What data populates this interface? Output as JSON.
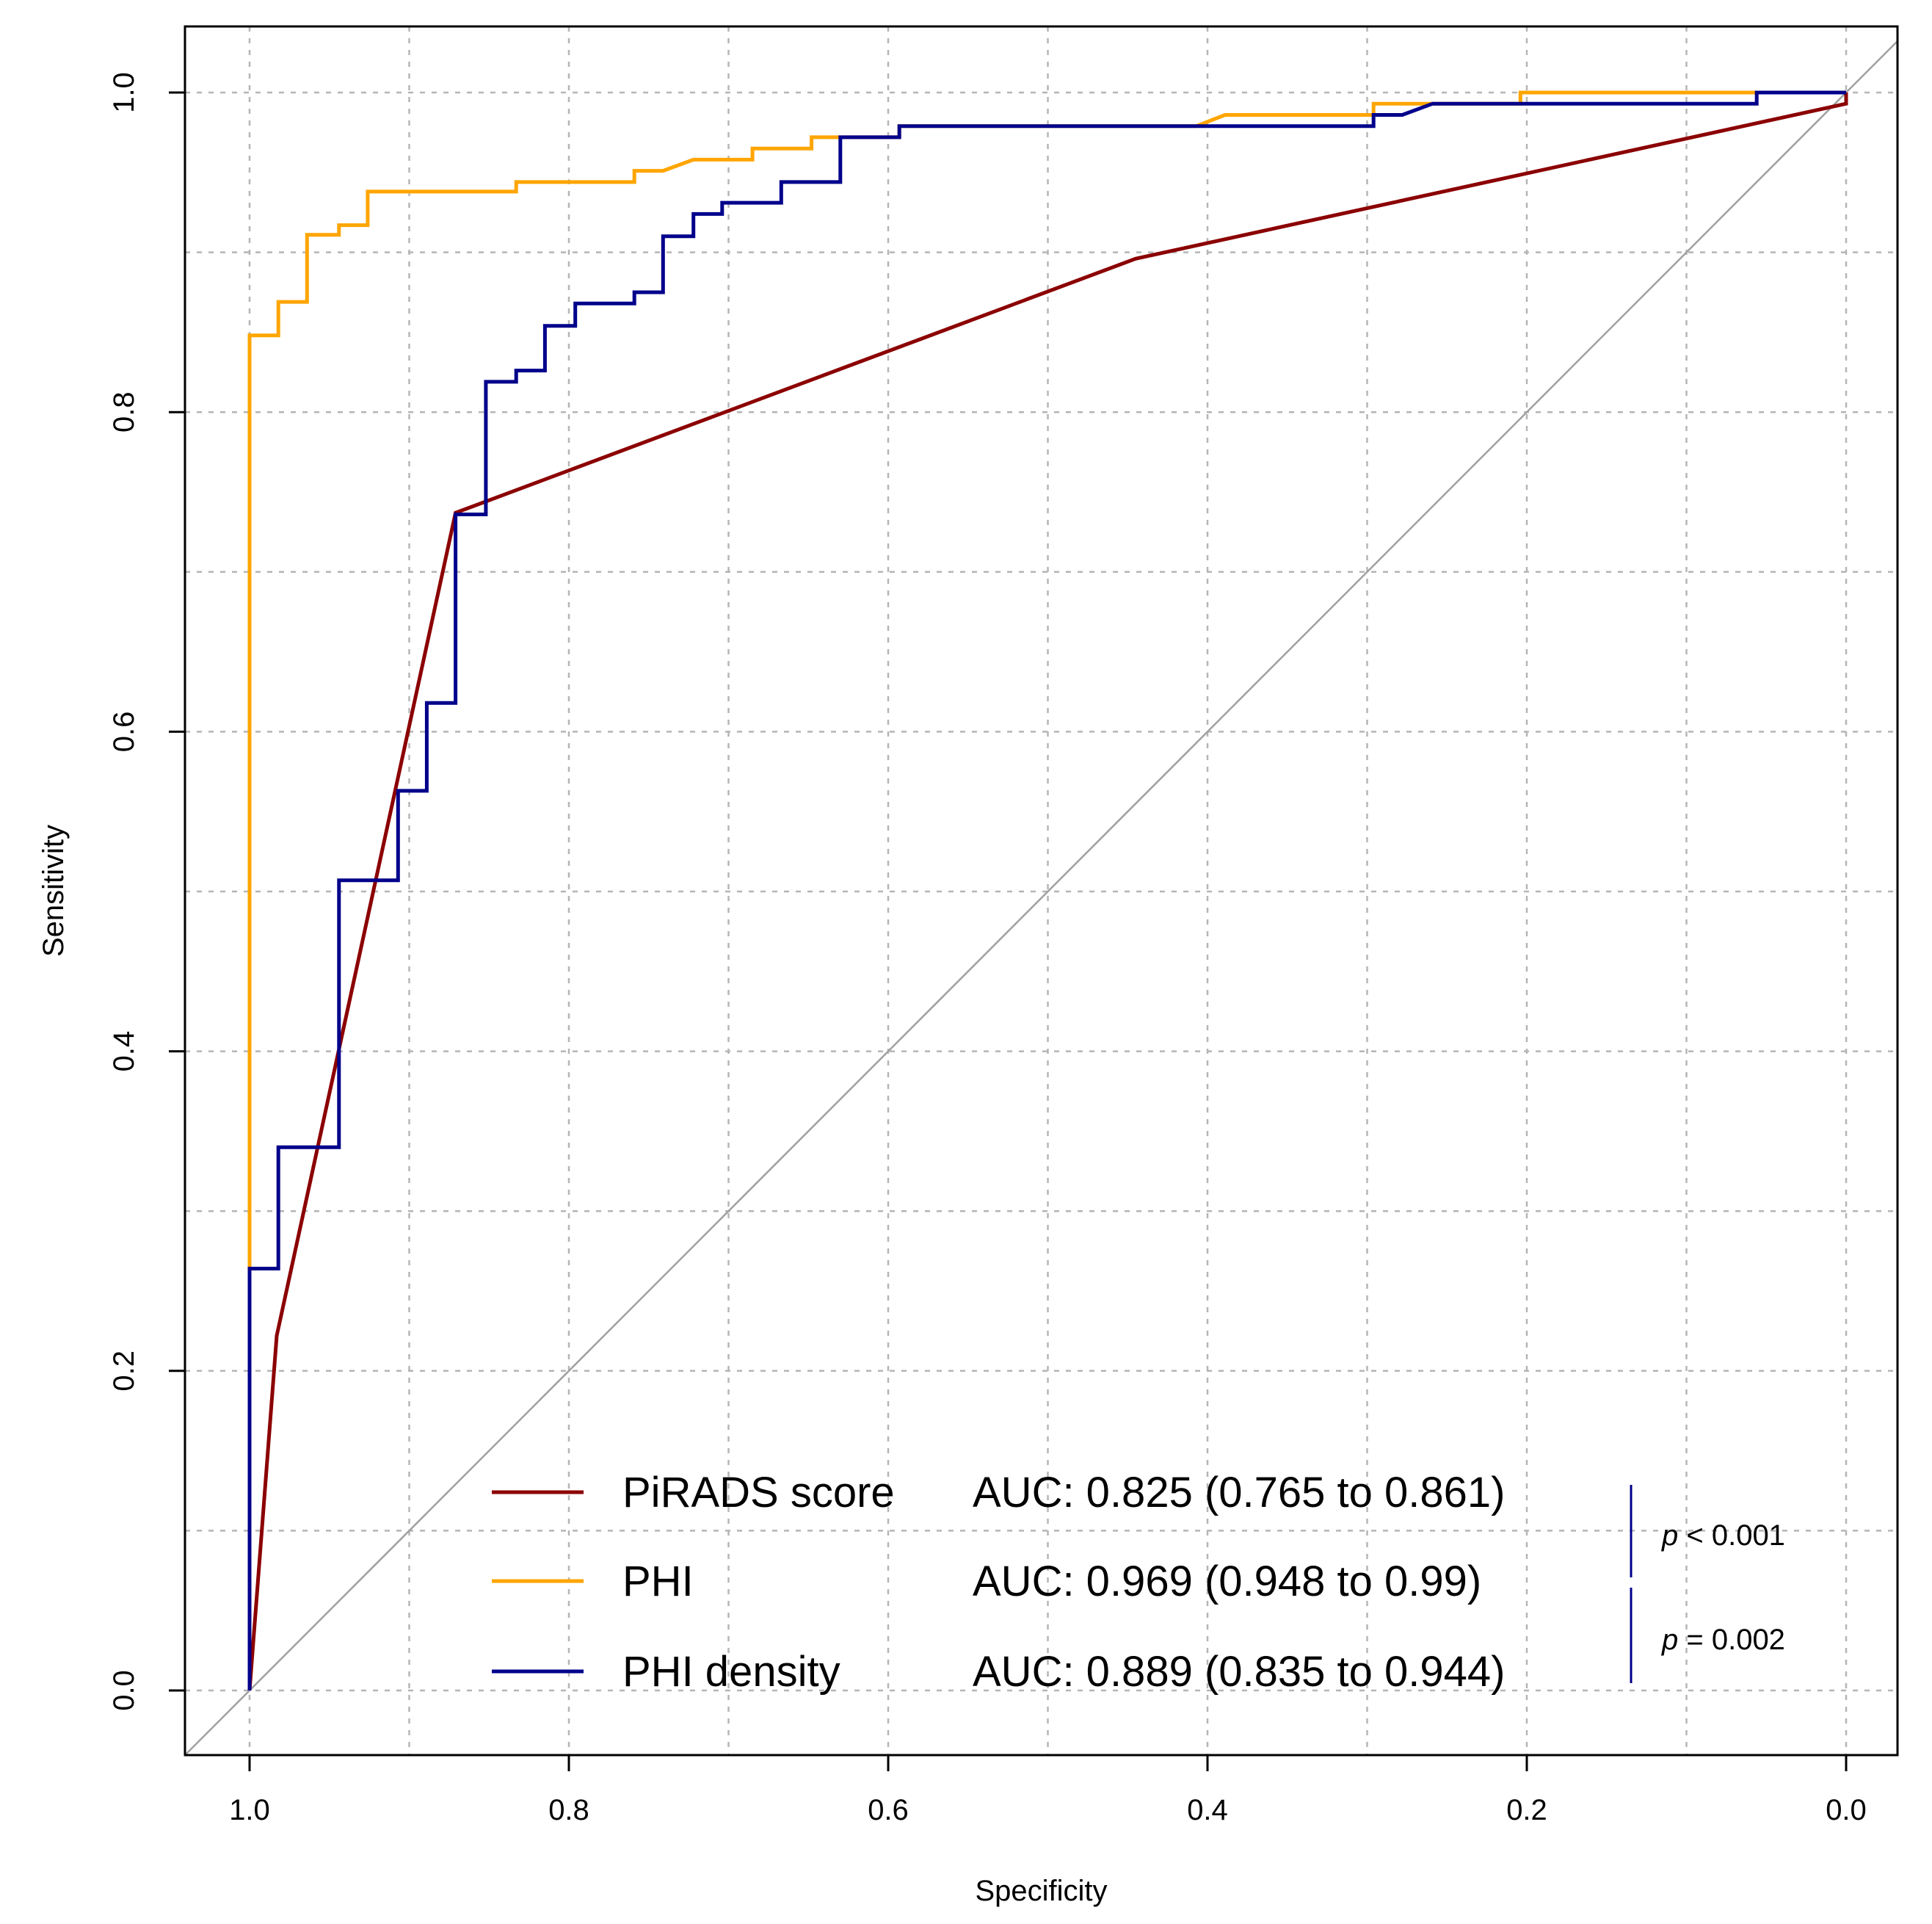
{
  "chart_data": {
    "type": "line",
    "title": "",
    "xlabel": "Specificity",
    "ylabel": "Sensitivity",
    "xlim": [
      1.04,
      -0.04
    ],
    "ylim": [
      -0.04,
      1.04
    ],
    "x_reversed": true,
    "x_ticks": [
      "1.0",
      "0.8",
      "0.6",
      "0.4",
      "0.2",
      "0.0"
    ],
    "y_ticks": [
      "0.0",
      "0.2",
      "0.4",
      "0.6",
      "0.8",
      "1.0"
    ],
    "grid": true,
    "legend_position": "bottom-right",
    "reference_line": {
      "from": [
        1,
        0
      ],
      "to": [
        0,
        1
      ],
      "color": "#a0a0a0"
    },
    "series": [
      {
        "name": "PiRADS score",
        "auc_label": "AUC: 0.825 (0.765 to 0.861)",
        "color": "#8b0000",
        "step": false,
        "points": [
          [
            1.0,
            0.0
          ],
          [
            0.983,
            0.222
          ],
          [
            0.871,
            0.737
          ],
          [
            0.445,
            0.896
          ],
          [
            0.0,
            0.993
          ],
          [
            0.0,
            1.0
          ]
        ]
      },
      {
        "name": "PHI",
        "auc_label": "AUC: 0.969 (0.948 to 0.99)",
        "color": "#ffa500",
        "step": true,
        "points": [
          [
            1.0,
            0.0
          ],
          [
            1.0,
            0.848
          ],
          [
            0.982,
            0.848
          ],
          [
            0.982,
            0.869
          ],
          [
            0.964,
            0.869
          ],
          [
            0.964,
            0.911
          ],
          [
            0.944,
            0.911
          ],
          [
            0.944,
            0.917
          ],
          [
            0.926,
            0.917
          ],
          [
            0.926,
            0.938
          ],
          [
            0.833,
            0.938
          ],
          [
            0.833,
            0.944
          ],
          [
            0.759,
            0.944
          ],
          [
            0.759,
            0.951
          ],
          [
            0.741,
            0.951
          ],
          [
            0.722,
            0.958
          ],
          [
            0.685,
            0.958
          ],
          [
            0.685,
            0.965
          ],
          [
            0.648,
            0.965
          ],
          [
            0.648,
            0.972
          ],
          [
            0.593,
            0.972
          ],
          [
            0.593,
            0.979
          ],
          [
            0.407,
            0.979
          ],
          [
            0.389,
            0.986
          ],
          [
            0.296,
            0.986
          ],
          [
            0.296,
            0.993
          ],
          [
            0.204,
            0.993
          ],
          [
            0.204,
            1.0
          ],
          [
            0.0,
            1.0
          ]
        ]
      },
      {
        "name": "PHI density",
        "auc_label": "AUC: 0.889 (0.835 to 0.944)",
        "color": "#00008b",
        "step": true,
        "points": [
          [
            1.0,
            0.0
          ],
          [
            1.0,
            0.264
          ],
          [
            0.982,
            0.264
          ],
          [
            0.982,
            0.34
          ],
          [
            0.944,
            0.34
          ],
          [
            0.944,
            0.507
          ],
          [
            0.907,
            0.507
          ],
          [
            0.907,
            0.563
          ],
          [
            0.889,
            0.563
          ],
          [
            0.889,
            0.618
          ],
          [
            0.871,
            0.618
          ],
          [
            0.871,
            0.736
          ],
          [
            0.852,
            0.736
          ],
          [
            0.852,
            0.819
          ],
          [
            0.833,
            0.819
          ],
          [
            0.833,
            0.826
          ],
          [
            0.815,
            0.826
          ],
          [
            0.815,
            0.854
          ],
          [
            0.796,
            0.854
          ],
          [
            0.796,
            0.868
          ],
          [
            0.759,
            0.868
          ],
          [
            0.759,
            0.875
          ],
          [
            0.741,
            0.875
          ],
          [
            0.741,
            0.91
          ],
          [
            0.722,
            0.91
          ],
          [
            0.722,
            0.924
          ],
          [
            0.704,
            0.924
          ],
          [
            0.704,
            0.931
          ],
          [
            0.667,
            0.931
          ],
          [
            0.667,
            0.944
          ],
          [
            0.63,
            0.944
          ],
          [
            0.63,
            0.972
          ],
          [
            0.593,
            0.972
          ],
          [
            0.593,
            0.979
          ],
          [
            0.407,
            0.979
          ],
          [
            0.296,
            0.979
          ],
          [
            0.296,
            0.986
          ],
          [
            0.278,
            0.986
          ],
          [
            0.259,
            0.993
          ],
          [
            0.056,
            0.993
          ],
          [
            0.056,
            1.0
          ],
          [
            0.0,
            1.0
          ]
        ]
      }
    ],
    "annotations": [
      {
        "text": "p < 0.001",
        "italic_part": "p",
        "rest": "< 0.001"
      },
      {
        "text": "p = 0.002",
        "italic_part": "p",
        "rest": "= 0.002"
      }
    ]
  }
}
